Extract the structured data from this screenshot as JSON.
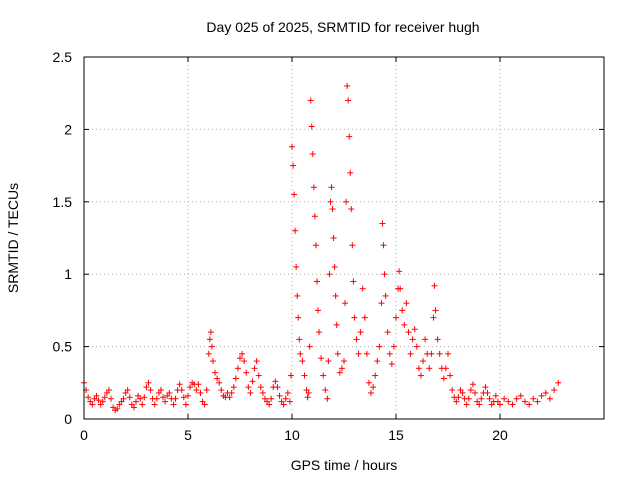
{
  "chart_data": {
    "type": "scatter",
    "title": "Day 025 of 2025, SRMTID for receiver hugh",
    "xlabel": "GPS time / hours",
    "ylabel": "SRMTID / TECUs",
    "xlim": [
      0,
      25
    ],
    "ylim": [
      0,
      2.5
    ],
    "xticks": [
      "0",
      "5",
      "10",
      "15",
      "20"
    ],
    "yticks": [
      "0",
      "0.5",
      "1",
      "1.5",
      "2",
      "2.5"
    ],
    "grid": true,
    "marker": "plus",
    "color": "#ff0000",
    "series": [
      {
        "name": "SRMTID",
        "points": [
          [
            0.0,
            0.25
          ],
          [
            0.1,
            0.2
          ],
          [
            0.2,
            0.15
          ],
          [
            0.3,
            0.12
          ],
          [
            0.4,
            0.1
          ],
          [
            0.5,
            0.14
          ],
          [
            0.6,
            0.16
          ],
          [
            0.7,
            0.13
          ],
          [
            0.8,
            0.1
          ],
          [
            0.9,
            0.12
          ],
          [
            1.0,
            0.15
          ],
          [
            1.1,
            0.18
          ],
          [
            1.2,
            0.2
          ],
          [
            1.3,
            0.14
          ],
          [
            1.4,
            0.08
          ],
          [
            1.5,
            0.06
          ],
          [
            1.6,
            0.07
          ],
          [
            1.7,
            0.1
          ],
          [
            1.8,
            0.12
          ],
          [
            1.9,
            0.14
          ],
          [
            2.0,
            0.18
          ],
          [
            2.1,
            0.2
          ],
          [
            2.2,
            0.15
          ],
          [
            2.3,
            0.1
          ],
          [
            2.4,
            0.08
          ],
          [
            2.5,
            0.12
          ],
          [
            2.6,
            0.16
          ],
          [
            2.7,
            0.14
          ],
          [
            2.8,
            0.1
          ],
          [
            2.9,
            0.15
          ],
          [
            3.0,
            0.22
          ],
          [
            3.1,
            0.25
          ],
          [
            3.2,
            0.2
          ],
          [
            3.3,
            0.14
          ],
          [
            3.4,
            0.1
          ],
          [
            3.5,
            0.14
          ],
          [
            3.6,
            0.18
          ],
          [
            3.7,
            0.2
          ],
          [
            3.8,
            0.15
          ],
          [
            3.9,
            0.12
          ],
          [
            4.0,
            0.16
          ],
          [
            4.1,
            0.18
          ],
          [
            4.2,
            0.14
          ],
          [
            4.3,
            0.1
          ],
          [
            4.4,
            0.14
          ],
          [
            4.5,
            0.2
          ],
          [
            4.6,
            0.24
          ],
          [
            4.7,
            0.2
          ],
          [
            4.8,
            0.15
          ],
          [
            4.9,
            0.1
          ],
          [
            5.0,
            0.16
          ],
          [
            5.1,
            0.22
          ],
          [
            5.2,
            0.25
          ],
          [
            5.3,
            0.24
          ],
          [
            5.4,
            0.2
          ],
          [
            5.5,
            0.24
          ],
          [
            5.6,
            0.18
          ],
          [
            5.7,
            0.12
          ],
          [
            5.8,
            0.1
          ],
          [
            5.9,
            0.2
          ],
          [
            6.0,
            0.45
          ],
          [
            6.05,
            0.55
          ],
          [
            6.1,
            0.6
          ],
          [
            6.15,
            0.5
          ],
          [
            6.2,
            0.4
          ],
          [
            6.3,
            0.32
          ],
          [
            6.4,
            0.28
          ],
          [
            6.5,
            0.25
          ],
          [
            6.6,
            0.2
          ],
          [
            6.7,
            0.16
          ],
          [
            6.8,
            0.15
          ],
          [
            6.9,
            0.18
          ],
          [
            7.0,
            0.15
          ],
          [
            7.1,
            0.18
          ],
          [
            7.2,
            0.22
          ],
          [
            7.3,
            0.28
          ],
          [
            7.4,
            0.35
          ],
          [
            7.5,
            0.42
          ],
          [
            7.6,
            0.45
          ],
          [
            7.7,
            0.4
          ],
          [
            7.8,
            0.32
          ],
          [
            7.9,
            0.22
          ],
          [
            8.0,
            0.18
          ],
          [
            8.1,
            0.26
          ],
          [
            8.2,
            0.35
          ],
          [
            8.3,
            0.4
          ],
          [
            8.4,
            0.3
          ],
          [
            8.5,
            0.22
          ],
          [
            8.6,
            0.18
          ],
          [
            8.7,
            0.14
          ],
          [
            8.8,
            0.12
          ],
          [
            8.9,
            0.1
          ],
          [
            9.0,
            0.14
          ],
          [
            9.1,
            0.22
          ],
          [
            9.2,
            0.26
          ],
          [
            9.3,
            0.22
          ],
          [
            9.4,
            0.16
          ],
          [
            9.5,
            0.12
          ],
          [
            9.6,
            0.1
          ],
          [
            9.7,
            0.14
          ],
          [
            9.8,
            0.18
          ],
          [
            9.9,
            0.12
          ],
          [
            9.95,
            0.3
          ],
          [
            10.0,
            1.88
          ],
          [
            10.05,
            1.75
          ],
          [
            10.1,
            1.55
          ],
          [
            10.15,
            1.3
          ],
          [
            10.2,
            1.05
          ],
          [
            10.25,
            0.85
          ],
          [
            10.3,
            0.7
          ],
          [
            10.35,
            0.55
          ],
          [
            10.4,
            0.45
          ],
          [
            10.5,
            0.4
          ],
          [
            10.6,
            0.3
          ],
          [
            10.7,
            0.2
          ],
          [
            10.75,
            0.15
          ],
          [
            10.8,
            0.18
          ],
          [
            10.85,
            0.5
          ],
          [
            10.9,
            2.2
          ],
          [
            10.95,
            2.02
          ],
          [
            11.0,
            1.83
          ],
          [
            11.05,
            1.6
          ],
          [
            11.1,
            1.4
          ],
          [
            11.15,
            1.2
          ],
          [
            11.2,
            0.95
          ],
          [
            11.25,
            0.75
          ],
          [
            11.3,
            0.6
          ],
          [
            11.4,
            0.42
          ],
          [
            11.5,
            0.3
          ],
          [
            11.6,
            0.2
          ],
          [
            11.7,
            0.14
          ],
          [
            11.75,
            0.4
          ],
          [
            11.8,
            1.0
          ],
          [
            11.85,
            1.5
          ],
          [
            11.9,
            1.6
          ],
          [
            11.95,
            1.45
          ],
          [
            12.0,
            1.25
          ],
          [
            12.05,
            1.05
          ],
          [
            12.1,
            0.85
          ],
          [
            12.15,
            0.65
          ],
          [
            12.2,
            0.45
          ],
          [
            12.3,
            0.32
          ],
          [
            12.4,
            0.35
          ],
          [
            12.5,
            0.4
          ],
          [
            12.55,
            0.8
          ],
          [
            12.6,
            1.5
          ],
          [
            12.65,
            2.3
          ],
          [
            12.7,
            2.2
          ],
          [
            12.75,
            1.95
          ],
          [
            12.8,
            1.7
          ],
          [
            12.85,
            1.45
          ],
          [
            12.9,
            1.2
          ],
          [
            12.95,
            0.95
          ],
          [
            13.0,
            0.7
          ],
          [
            13.1,
            0.55
          ],
          [
            13.2,
            0.45
          ],
          [
            13.3,
            0.6
          ],
          [
            13.4,
            0.9
          ],
          [
            13.5,
            0.7
          ],
          [
            13.6,
            0.45
          ],
          [
            13.7,
            0.25
          ],
          [
            13.8,
            0.18
          ],
          [
            13.9,
            0.22
          ],
          [
            14.0,
            0.3
          ],
          [
            14.1,
            0.4
          ],
          [
            14.2,
            0.5
          ],
          [
            14.3,
            0.8
          ],
          [
            14.35,
            1.35
          ],
          [
            14.4,
            1.2
          ],
          [
            14.45,
            1.0
          ],
          [
            14.5,
            0.85
          ],
          [
            14.6,
            0.6
          ],
          [
            14.7,
            0.45
          ],
          [
            14.8,
            0.38
          ],
          [
            14.9,
            0.5
          ],
          [
            15.0,
            0.7
          ],
          [
            15.1,
            0.9
          ],
          [
            15.15,
            1.02
          ],
          [
            15.2,
            0.9
          ],
          [
            15.3,
            0.75
          ],
          [
            15.4,
            0.65
          ],
          [
            15.5,
            0.8
          ],
          [
            15.6,
            0.6
          ],
          [
            15.7,
            0.45
          ],
          [
            15.8,
            0.55
          ],
          [
            15.9,
            0.62
          ],
          [
            16.0,
            0.5
          ],
          [
            16.1,
            0.35
          ],
          [
            16.2,
            0.3
          ],
          [
            16.3,
            0.4
          ],
          [
            16.4,
            0.55
          ],
          [
            16.5,
            0.45
          ],
          [
            16.6,
            0.35
          ],
          [
            16.7,
            0.45
          ],
          [
            16.8,
            0.7
          ],
          [
            16.85,
            0.92
          ],
          [
            16.9,
            0.75
          ],
          [
            17.0,
            0.55
          ],
          [
            17.1,
            0.45
          ],
          [
            17.2,
            0.35
          ],
          [
            17.3,
            0.28
          ],
          [
            17.4,
            0.35
          ],
          [
            17.5,
            0.45
          ],
          [
            17.6,
            0.3
          ],
          [
            17.7,
            0.2
          ],
          [
            17.8,
            0.15
          ],
          [
            17.9,
            0.12
          ],
          [
            18.0,
            0.15
          ],
          [
            18.1,
            0.2
          ],
          [
            18.2,
            0.18
          ],
          [
            18.3,
            0.14
          ],
          [
            18.4,
            0.1
          ],
          [
            18.5,
            0.14
          ],
          [
            18.6,
            0.2
          ],
          [
            18.7,
            0.24
          ],
          [
            18.8,
            0.18
          ],
          [
            18.9,
            0.12
          ],
          [
            19.0,
            0.1
          ],
          [
            19.1,
            0.14
          ],
          [
            19.2,
            0.18
          ],
          [
            19.3,
            0.22
          ],
          [
            19.4,
            0.18
          ],
          [
            19.5,
            0.14
          ],
          [
            19.6,
            0.1
          ],
          [
            19.7,
            0.12
          ],
          [
            19.8,
            0.16
          ],
          [
            19.9,
            0.12
          ],
          [
            20.0,
            0.1
          ],
          [
            20.2,
            0.14
          ],
          [
            20.4,
            0.12
          ],
          [
            20.6,
            0.1
          ],
          [
            20.8,
            0.14
          ],
          [
            21.0,
            0.16
          ],
          [
            21.2,
            0.12
          ],
          [
            21.4,
            0.1
          ],
          [
            21.6,
            0.14
          ],
          [
            21.8,
            0.12
          ],
          [
            22.0,
            0.16
          ],
          [
            22.2,
            0.18
          ],
          [
            22.4,
            0.14
          ],
          [
            22.6,
            0.2
          ],
          [
            22.8,
            0.25
          ]
        ]
      }
    ]
  }
}
